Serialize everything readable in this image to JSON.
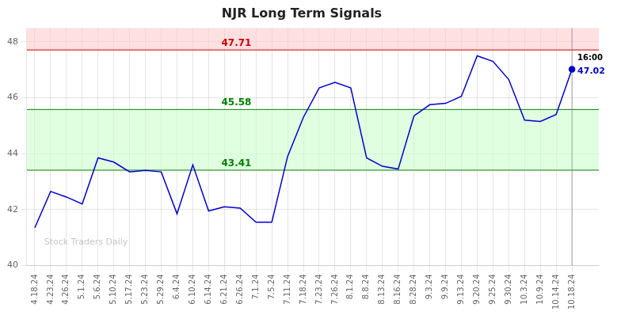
{
  "chart_data": {
    "type": "line",
    "title": "NJR Long Term Signals",
    "categories": [
      "4.18.24",
      "4.23.24",
      "4.26.24",
      "5.1.24",
      "5.6.24",
      "5.10.24",
      "5.17.24",
      "5.23.24",
      "5.29.24",
      "6.4.24",
      "6.10.24",
      "6.14.24",
      "6.21.24",
      "6.26.24",
      "7.1.24",
      "7.5.24",
      "7.11.24",
      "7.18.24",
      "7.23.24",
      "7.26.24",
      "8.1.24",
      "8.8.24",
      "8.13.24",
      "8.16.24",
      "8.28.24",
      "9.3.24",
      "9.9.24",
      "9.13.24",
      "9.20.24",
      "9.25.24",
      "9.30.24",
      "10.3.24",
      "10.9.24",
      "10.14.24",
      "10.18.24"
    ],
    "values": [
      41.35,
      42.65,
      42.45,
      42.2,
      43.85,
      43.7,
      43.35,
      43.4,
      43.35,
      41.85,
      43.6,
      41.95,
      42.1,
      42.05,
      41.55,
      41.55,
      43.9,
      45.3,
      46.35,
      46.55,
      46.35,
      43.85,
      43.55,
      43.45,
      45.35,
      45.75,
      45.8,
      46.05,
      47.5,
      47.3,
      46.65,
      45.2,
      45.15,
      45.4,
      47.02
    ],
    "color": "#0000cc",
    "ylim": [
      40,
      48.5
    ],
    "yticks": [
      40,
      42,
      44,
      46,
      48
    ],
    "grid": true,
    "bands": [
      {
        "from": 47.71,
        "to": 48.5,
        "color": "#ffcccc"
      },
      {
        "from": 43.41,
        "to": 45.58,
        "color": "#ccffcc"
      }
    ],
    "hlines": [
      {
        "y": 47.71,
        "color": "#cc0000",
        "label": "47.71"
      },
      {
        "y": 45.58,
        "color": "#008000",
        "label": "45.58"
      },
      {
        "y": 43.41,
        "color": "#008000",
        "label": "43.41"
      }
    ],
    "annotations": [
      "16:00",
      "47.02"
    ],
    "watermark": "Stock Traders Daily"
  }
}
